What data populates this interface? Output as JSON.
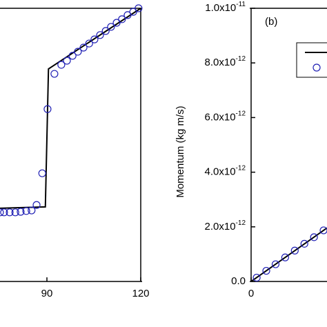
{
  "chart_data": [
    {
      "type": "line",
      "xlim": [
        75,
        120
      ],
      "ylim": [
        0,
        1
      ],
      "xticks": [
        90,
        120
      ],
      "series": [
        {
          "style": "line",
          "color": "#000000",
          "x": [
            75,
            89.5,
            90.5,
            120
          ],
          "values": [
            0.268,
            0.273,
            0.778,
            1.0
          ]
        },
        {
          "style": "markers",
          "color": "#1f1fb4",
          "x": [
            75.0,
            76.3,
            78.1,
            79.9,
            81.6,
            83.4,
            85.1,
            86.7,
            88.5,
            90.2,
            92.4,
            94.6,
            96.4,
            98.2,
            99.9,
            101.7,
            103.5,
            105.2,
            107.0,
            108.8,
            110.5,
            112.3,
            114.0,
            115.8,
            117.6,
            119.3
          ],
          "values": [
            0.253,
            0.253,
            0.253,
            0.253,
            0.255,
            0.258,
            0.26,
            0.28,
            0.396,
            0.631,
            0.76,
            0.793,
            0.808,
            0.826,
            0.841,
            0.856,
            0.871,
            0.886,
            0.902,
            0.917,
            0.932,
            0.947,
            0.96,
            0.975,
            0.987,
            1.0
          ]
        }
      ]
    },
    {
      "type": "line",
      "panel_label": "(b)",
      "y_label": "Momentum (kg m/s)",
      "xlim": [
        0,
        24.5
      ],
      "ylim": [
        0,
        1e-11
      ],
      "xticks": [
        0
      ],
      "yticks": [
        {
          "value": 0,
          "label": "0.0"
        },
        {
          "value": 2e-12,
          "label": "2.0x10",
          "sup": "-12"
        },
        {
          "value": 4e-12,
          "label": "4.0x10",
          "sup": "-12"
        },
        {
          "value": 6e-12,
          "label": "6.0x10",
          "sup": "-12"
        },
        {
          "value": 8e-12,
          "label": "8.0x10",
          "sup": "-12"
        },
        {
          "value": 1e-11,
          "label": "1.0x10",
          "sup": "-11"
        }
      ],
      "legend": "upper right",
      "series": [
        {
          "style": "line",
          "color": "#000000",
          "x": [
            0,
            24.5
          ],
          "values": [
            0,
            1.96e-12
          ]
        },
        {
          "style": "markers",
          "color": "#1f1fb4",
          "x": [
            1.8,
            4.9,
            7.9,
            11.0,
            14.1,
            17.2,
            20.3,
            23.4
          ],
          "values": [
            1.4e-13,
            3.9e-13,
            6.3e-13,
            8.8e-13,
            1.13e-12,
            1.38e-12,
            1.62e-12,
            1.87e-12
          ]
        }
      ]
    }
  ]
}
